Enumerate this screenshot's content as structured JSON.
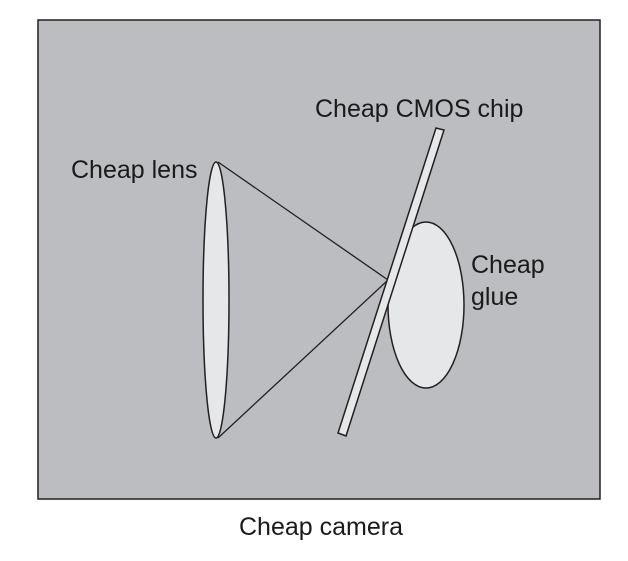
{
  "diagram": {
    "caption": "Cheap camera",
    "labels": {
      "lens": "Cheap lens",
      "chip": "Cheap CMOS chip",
      "glue_line1": "Cheap",
      "glue_line2": "glue"
    },
    "colors": {
      "housing_fill": "#bcbdc0",
      "component_fill": "#e6e7e8",
      "stroke": "#231f20",
      "text": "#1a1a1a",
      "background": "#ffffff"
    }
  }
}
